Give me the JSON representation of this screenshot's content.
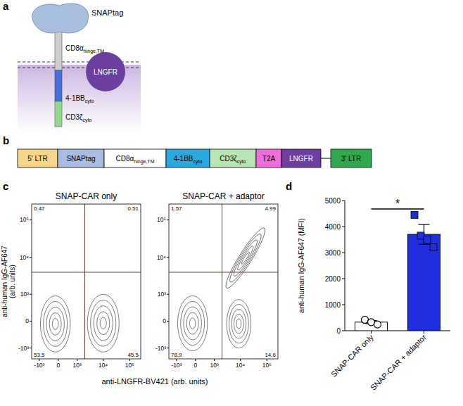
{
  "panel_labels": [
    "a",
    "b",
    "c",
    "d"
  ],
  "schematic": {
    "parts": [
      {
        "text": "SNAPtag"
      },
      {
        "text": "CD8α",
        "sub": "hinge,TM"
      },
      {
        "text": "LNGFR"
      },
      {
        "text": "4-1BB",
        "sub": "cyto"
      },
      {
        "text": "CD3ζ",
        "sub": "cyto"
      }
    ]
  },
  "construct": {
    "segments": [
      {
        "text": "5' LTR",
        "color": "#f7d68a"
      },
      {
        "text": "SNAPtag",
        "color": "#a9bde0"
      },
      {
        "text": "CD8α",
        "sub": "hinge,TM",
        "color": "#ffffff"
      },
      {
        "text": "4-1BB",
        "sub": "cyto",
        "color": "#2aa8e0"
      },
      {
        "text": "CD3ζ",
        "sub": "cyto",
        "color": "#b9e4b3"
      },
      {
        "text": "T2A",
        "color": "#f26ddc"
      },
      {
        "text": "LNGFR",
        "color": "#6e3ea0"
      },
      {
        "text": "3' LTR",
        "color": "#2fa84f"
      }
    ]
  },
  "chart_data": [
    {
      "type": "contour",
      "title": "SNAP-CAR only",
      "xlabel": "anti-LNGFR-BV421 (arb. units)",
      "ylabel": [
        "anti-human IgG-AF647",
        "(arb. units)"
      ],
      "xlim": [
        -2000,
        262144
      ],
      "ylim": [
        -2000,
        262144
      ],
      "xticks": [
        {
          "value": -1000,
          "label": "-10³"
        },
        0,
        {
          "value": 1000,
          "label": "10³"
        },
        {
          "value": 10000,
          "label": "10⁴"
        },
        {
          "value": 100000,
          "label": "10⁵"
        }
      ],
      "yticks": [
        {
          "value": -1000,
          "label": "-10³"
        },
        0,
        {
          "value": 1000,
          "label": "10³"
        },
        {
          "value": 10000,
          "label": "10⁴"
        },
        {
          "value": 100000,
          "label": "10⁵"
        }
      ],
      "quadrants": {
        "x": 2000,
        "y": 4000,
        "upper_left": 0.47,
        "upper_right": 0.51,
        "lower_left": 53.5,
        "lower_right": 45.5
      },
      "populations": [
        {
          "shape": "ellipse",
          "x_range": [
            -900,
            500
          ],
          "y_range": [
            -1300,
            900
          ]
        },
        {
          "shape": "ellipse",
          "x_range": [
            2500,
            40000
          ],
          "y_range": [
            -1300,
            1000
          ]
        }
      ]
    },
    {
      "type": "contour",
      "title": "SNAP-CAR + adaptor",
      "xlim": [
        -2000,
        262144
      ],
      "ylim": [
        -2000,
        262144
      ],
      "xticks": [
        {
          "value": -1000,
          "label": "-10³"
        },
        0,
        {
          "value": 1000,
          "label": "10³"
        },
        {
          "value": 10000,
          "label": "10⁴"
        },
        {
          "value": 100000,
          "label": "10⁵"
        }
      ],
      "yticks": [
        {
          "value": -1000,
          "label": "-10³"
        },
        0,
        {
          "value": 1000,
          "label": "10³"
        },
        {
          "value": 10000,
          "label": "10⁴"
        },
        {
          "value": 100000,
          "label": "10⁵"
        }
      ],
      "quadrants": {
        "x": 2000,
        "y": 4000,
        "upper_left": 1.57,
        "upper_right": 4.99,
        "lower_left": 78.9,
        "lower_right": 14.6
      },
      "populations": [
        {
          "shape": "ellipse",
          "x_range": [
            -900,
            500
          ],
          "y_range": [
            -1200,
            900
          ]
        },
        {
          "shape": "ellipse",
          "x_range": [
            3000,
            25000
          ],
          "y_range": [
            -1000,
            700
          ]
        },
        {
          "shape": "diagonal",
          "x_range": [
            3000,
            80000
          ],
          "y_range": [
            1500,
            60000
          ]
        }
      ]
    },
    {
      "type": "bar",
      "categories": [
        "SNAP-CAR only",
        "SNAP-CAR + adaptor"
      ],
      "values": [
        330,
        3700
      ],
      "errors": [
        60,
        380
      ],
      "colors": [
        "#ffffff",
        "#1f2fe0"
      ],
      "points": [
        {
          "values": [
            420,
            330,
            240
          ],
          "marker": "circle"
        },
        {
          "values": [
            4450,
            3650,
            3500,
            3200
          ],
          "marker": "square"
        }
      ],
      "ylabel": "anti-human IgG-AF647 (MFI)",
      "ylim": [
        0,
        5000
      ],
      "yticks": [
        0,
        1000,
        2000,
        3000,
        4000,
        5000
      ],
      "significance": {
        "text": "*",
        "between": [
          "SNAP-CAR only",
          "SNAP-CAR + adaptor"
        ]
      }
    }
  ]
}
